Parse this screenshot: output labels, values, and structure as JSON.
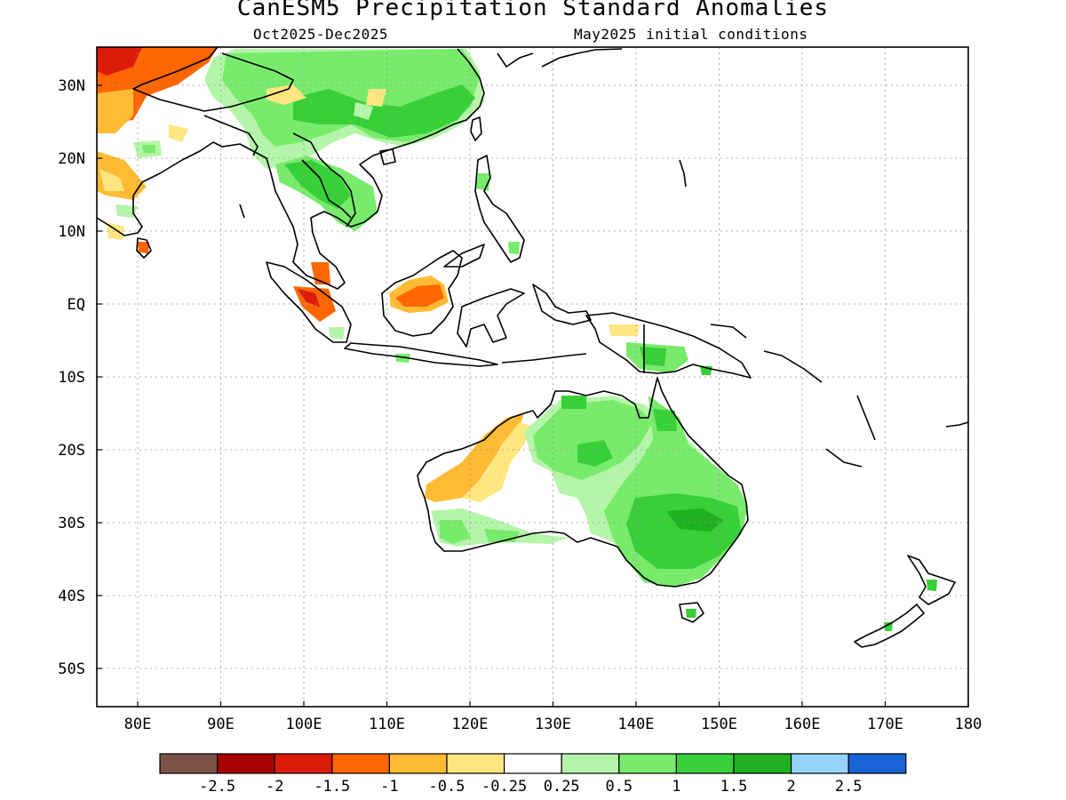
{
  "title": "CanESM5 Precipitation Standard Anomalies",
  "subtitle_left": "Oct2025-Dec2025",
  "subtitle_right": "May2025 initial conditions",
  "lat_labels": [
    "30N",
    "20N",
    "10N",
    "EQ",
    "10S",
    "20S",
    "30S",
    "40S",
    "50S"
  ],
  "lon_labels": [
    "80E",
    "90E",
    "100E",
    "110E",
    "120E",
    "130E",
    "140E",
    "150E",
    "160E",
    "170E",
    "180"
  ],
  "colorbar": {
    "colors": [
      "#7b5247",
      "#a60000",
      "#dd1b0b",
      "#ff6600",
      "#ffbb33",
      "#ffe680",
      "#ffffff",
      "#b4f5a9",
      "#78eb6c",
      "#38cf38",
      "#20b120",
      "#96d2fa",
      "#1764d6"
    ],
    "labels": [
      "-2.5",
      "-2",
      "-1.5",
      "-1",
      "-0.5",
      "-0.25",
      "0.25",
      "0.5",
      "1",
      "1.5",
      "2",
      "2.5"
    ]
  }
}
